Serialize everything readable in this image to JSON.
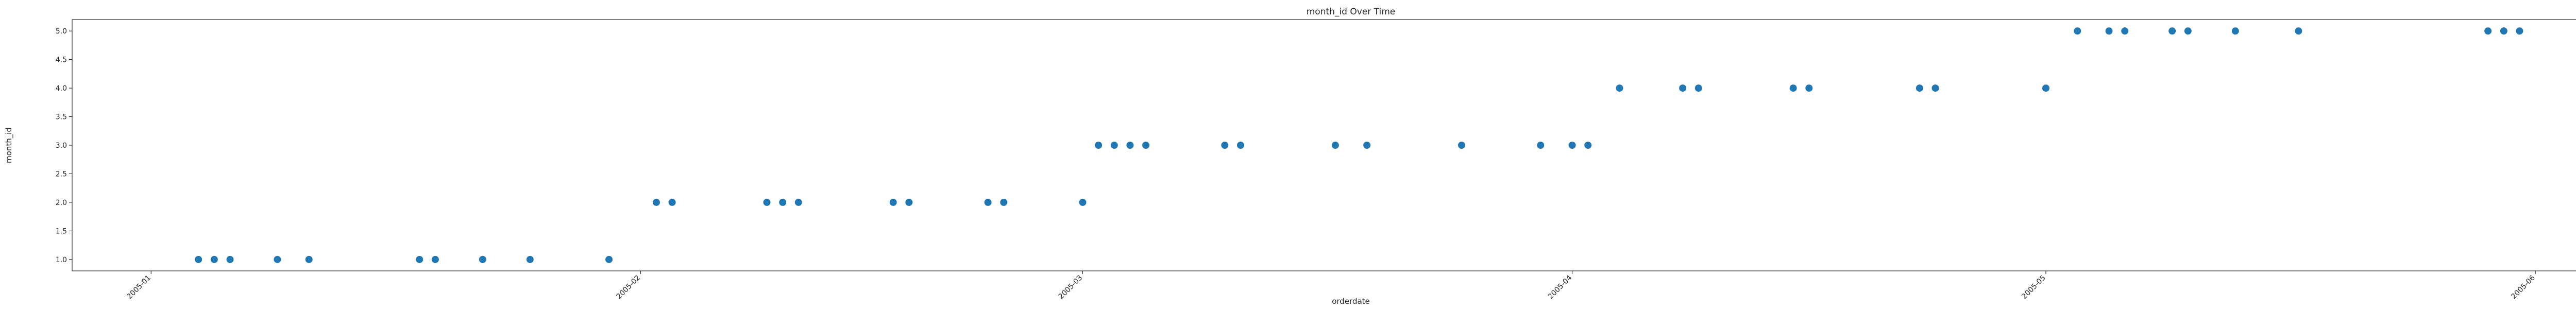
{
  "chart_data": {
    "type": "scatter",
    "title": "month_id Over Time",
    "xlabel": "orderdate",
    "ylabel": "month_id",
    "xlim": [
      "2004-12-27",
      "2005-06-07"
    ],
    "ylim": [
      0.8,
      5.2
    ],
    "x_ticks": [
      "2005-01",
      "2005-02",
      "2005-03",
      "2005-04",
      "2005-05",
      "2005-06"
    ],
    "y_ticks": [
      "1.0",
      "1.5",
      "2.0",
      "2.5",
      "3.0",
      "3.5",
      "4.0",
      "4.5",
      "5.0"
    ],
    "grid": false,
    "marker_color": "#1f77b4",
    "series": [
      {
        "x": [
          "2005-01-04",
          "2005-01-05",
          "2005-01-06",
          "2005-01-09",
          "2005-01-11",
          "2005-01-18",
          "2005-01-19",
          "2005-01-22",
          "2005-01-25",
          "2005-01-30",
          "2005-02-02",
          "2005-02-03",
          "2005-02-09",
          "2005-02-10",
          "2005-02-11",
          "2005-02-17",
          "2005-02-18",
          "2005-02-23",
          "2005-02-24",
          "2005-03-01",
          "2005-03-02",
          "2005-03-03",
          "2005-03-04",
          "2005-03-05",
          "2005-03-10",
          "2005-03-11",
          "2005-03-17",
          "2005-03-19",
          "2005-03-25",
          "2005-03-30",
          "2005-04-01",
          "2005-04-02",
          "2005-04-04",
          "2005-04-08",
          "2005-04-09",
          "2005-04-15",
          "2005-04-16",
          "2005-04-23",
          "2005-04-24",
          "2005-05-01",
          "2005-05-03",
          "2005-05-05",
          "2005-05-06",
          "2005-05-09",
          "2005-05-10",
          "2005-05-13",
          "2005-05-17",
          "2005-05-29",
          "2005-05-30",
          "2005-05-31"
        ],
        "y": [
          1,
          1,
          1,
          1,
          1,
          1,
          1,
          1,
          1,
          1,
          2,
          2,
          2,
          2,
          2,
          2,
          2,
          2,
          2,
          2,
          3,
          3,
          3,
          3,
          3,
          3,
          3,
          3,
          3,
          3,
          3,
          3,
          4,
          4,
          4,
          4,
          4,
          4,
          4,
          4,
          5,
          5,
          5,
          5,
          5,
          5,
          5,
          5,
          5,
          5
        ]
      }
    ]
  }
}
